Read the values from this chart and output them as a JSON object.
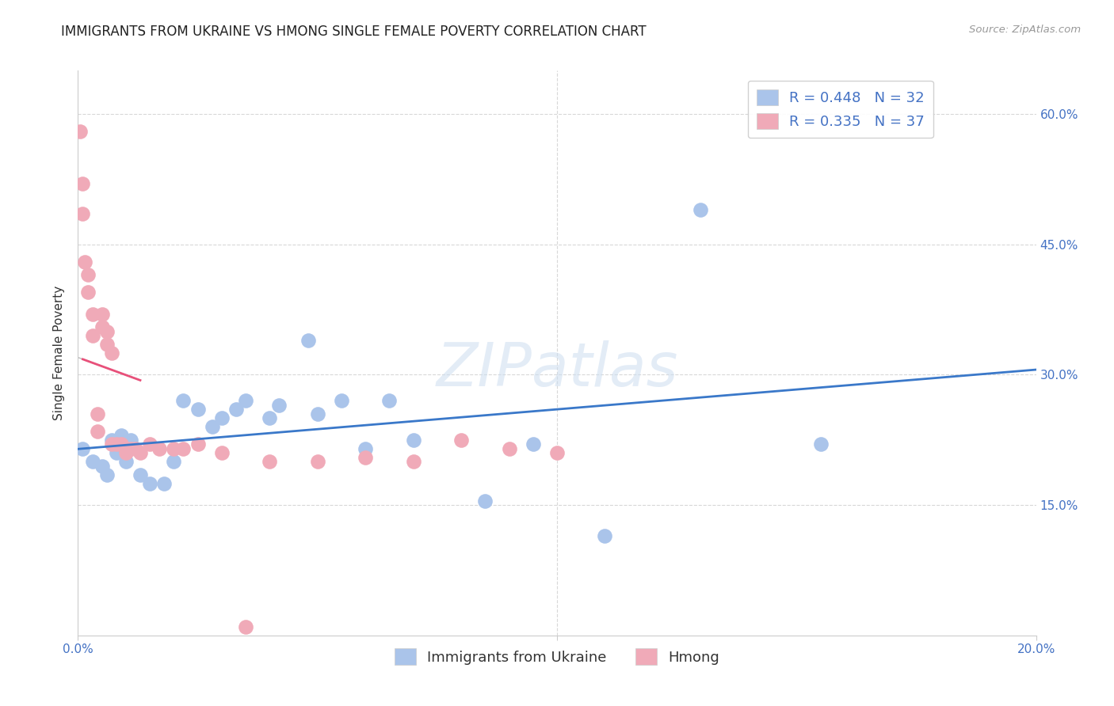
{
  "title": "IMMIGRANTS FROM UKRAINE VS HMONG SINGLE FEMALE POVERTY CORRELATION CHART",
  "source": "Source: ZipAtlas.com",
  "ylabel": "Single Female Poverty",
  "watermark_zip": "ZIP",
  "watermark_atlas": "atlas",
  "xlim": [
    0.0,
    0.2
  ],
  "ylim": [
    0.0,
    0.65
  ],
  "xticks": [
    0.0,
    0.2
  ],
  "yticks_right": [
    0.15,
    0.3,
    0.45,
    0.6
  ],
  "ukraine_R": 0.448,
  "ukraine_N": 32,
  "hmong_R": 0.335,
  "hmong_N": 37,
  "ukraine_color": "#aac4ea",
  "hmong_color": "#f0aab8",
  "ukraine_line_color": "#3a78c9",
  "hmong_line_color": "#e8507a",
  "ukraine_x": [
    0.001,
    0.003,
    0.005,
    0.006,
    0.007,
    0.008,
    0.009,
    0.01,
    0.011,
    0.013,
    0.015,
    0.018,
    0.02,
    0.022,
    0.025,
    0.028,
    0.03,
    0.033,
    0.035,
    0.04,
    0.042,
    0.048,
    0.05,
    0.055,
    0.06,
    0.065,
    0.07,
    0.085,
    0.095,
    0.11,
    0.13,
    0.155
  ],
  "ukraine_y": [
    0.215,
    0.2,
    0.195,
    0.185,
    0.225,
    0.21,
    0.23,
    0.2,
    0.225,
    0.185,
    0.175,
    0.175,
    0.2,
    0.27,
    0.26,
    0.24,
    0.25,
    0.26,
    0.27,
    0.25,
    0.265,
    0.34,
    0.255,
    0.27,
    0.215,
    0.27,
    0.225,
    0.155,
    0.22,
    0.115,
    0.49,
    0.22
  ],
  "hmong_x": [
    0.0005,
    0.001,
    0.001,
    0.0015,
    0.002,
    0.002,
    0.003,
    0.003,
    0.004,
    0.004,
    0.005,
    0.005,
    0.006,
    0.006,
    0.007,
    0.007,
    0.008,
    0.009,
    0.01,
    0.01,
    0.011,
    0.012,
    0.013,
    0.015,
    0.017,
    0.02,
    0.022,
    0.025,
    0.03,
    0.035,
    0.04,
    0.05,
    0.06,
    0.07,
    0.08,
    0.09,
    0.1
  ],
  "hmong_y": [
    0.58,
    0.52,
    0.485,
    0.43,
    0.415,
    0.395,
    0.37,
    0.345,
    0.255,
    0.235,
    0.37,
    0.355,
    0.35,
    0.335,
    0.325,
    0.22,
    0.22,
    0.22,
    0.215,
    0.21,
    0.215,
    0.215,
    0.21,
    0.22,
    0.215,
    0.215,
    0.215,
    0.22,
    0.21,
    0.01,
    0.2,
    0.2,
    0.205,
    0.2,
    0.225,
    0.215,
    0.21
  ],
  "background_color": "#ffffff",
  "grid_color": "#d8d8d8",
  "title_fontsize": 12,
  "axis_label_fontsize": 11,
  "tick_fontsize": 11,
  "legend_fontsize": 13
}
